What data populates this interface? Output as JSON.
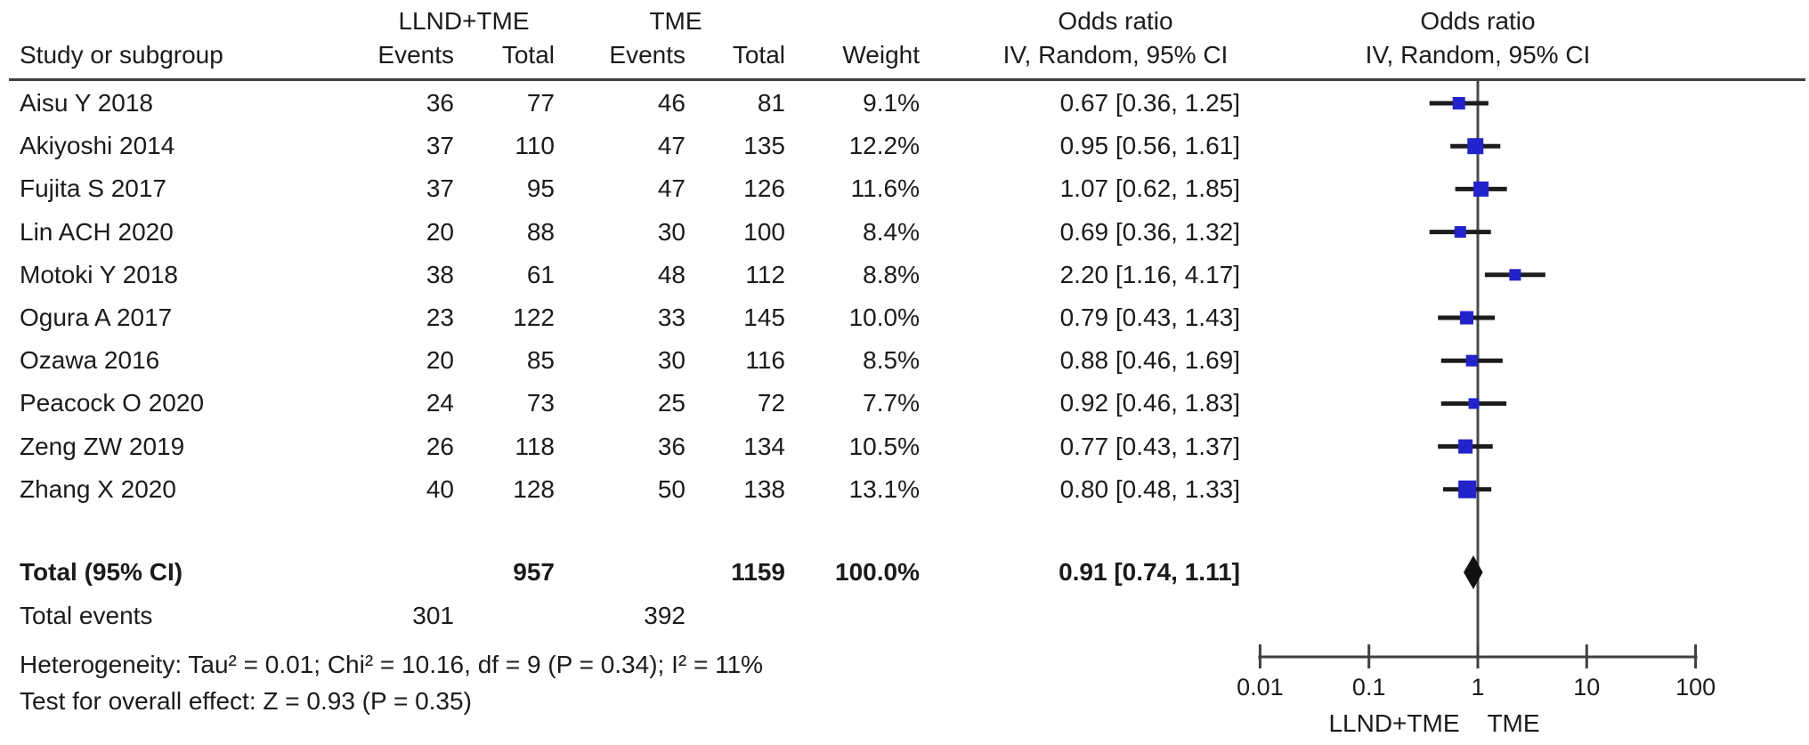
{
  "figure": {
    "header": {
      "study_col": "Study or subgroup",
      "group1_name": "LLND+TME",
      "group2_name": "TME",
      "events_label": "Events",
      "total_label": "Total",
      "weight_label": "Weight",
      "or_col_line1": "Odds ratio",
      "or_col_line2": "IV, Random, 95% CI",
      "plot_col_line1": "Odds ratio",
      "plot_col_line2": "IV, Random, 95% CI"
    },
    "rows": [
      {
        "study": "Aisu Y 2018",
        "events1": "36",
        "total1": "77",
        "events2": "46",
        "total2": "81",
        "weight": "9.1%",
        "or_text": "0.67 [0.36, 1.25]"
      },
      {
        "study": "Akiyoshi 2014",
        "events1": "37",
        "total1": "110",
        "events2": "47",
        "total2": "135",
        "weight": "12.2%",
        "or_text": "0.95 [0.56, 1.61]"
      },
      {
        "study": "Fujita S 2017",
        "events1": "37",
        "total1": "95",
        "events2": "47",
        "total2": "126",
        "weight": "11.6%",
        "or_text": "1.07 [0.62, 1.85]"
      },
      {
        "study": "Lin ACH 2020",
        "events1": "20",
        "total1": "88",
        "events2": "30",
        "total2": "100",
        "weight": "8.4%",
        "or_text": "0.69 [0.36, 1.32]"
      },
      {
        "study": "Motoki Y 2018",
        "events1": "38",
        "total1": "61",
        "events2": "48",
        "total2": "112",
        "weight": "8.8%",
        "or_text": "2.20 [1.16, 4.17]"
      },
      {
        "study": "Ogura A 2017",
        "events1": "23",
        "total1": "122",
        "events2": "33",
        "total2": "145",
        "weight": "10.0%",
        "or_text": "0.79 [0.43, 1.43]"
      },
      {
        "study": "Ozawa 2016",
        "events1": "20",
        "total1": "85",
        "events2": "30",
        "total2": "116",
        "weight": "8.5%",
        "or_text": "0.88 [0.46, 1.69]"
      },
      {
        "study": "Peacock O 2020",
        "events1": "24",
        "total1": "73",
        "events2": "25",
        "total2": "72",
        "weight": "7.7%",
        "or_text": "0.92 [0.46, 1.83]"
      },
      {
        "study": "Zeng ZW 2019",
        "events1": "26",
        "total1": "118",
        "events2": "36",
        "total2": "134",
        "weight": "10.5%",
        "or_text": "0.77 [0.43, 1.37]"
      },
      {
        "study": "Zhang X 2020",
        "events1": "40",
        "total1": "128",
        "events2": "50",
        "total2": "138",
        "weight": "13.1%",
        "or_text": "0.80 [0.48, 1.33]"
      }
    ],
    "total_row": {
      "label": "Total (95% CI)",
      "total1": "957",
      "total2": "1159",
      "weight": "100.0%",
      "or_text": "0.91 [0.74, 1.11]"
    },
    "total_events": {
      "label": "Total events",
      "events1": "301",
      "events2": "392"
    },
    "heterogeneity": "Heterogeneity: Tau² = 0.01; Chi² = 10.16, df = 9 (P = 0.34); I² = 11%",
    "overall_effect": "Test for overall effect: Z = 0.93 (P = 0.35)"
  },
  "axis": {
    "tick_labels": [
      "0.01",
      "0.1",
      "1",
      "10",
      "100"
    ],
    "favours_left": "LLND+TME",
    "favours_right": "TME"
  },
  "colors": {
    "marker_blue": "#2323cd",
    "diamond_black": "#111111",
    "ci_line": "#1c1c1c",
    "axis_gray": "#3f3f3f",
    "no_effect_line_gray": "#4a4a4a"
  },
  "chart_data": {
    "type": "scatter",
    "subtype": "forest_plot_meta_analysis",
    "effect_measure": "Odds ratio, IV, Random, 95% CI",
    "x_scale": "log10",
    "xlim": [
      0.01,
      100
    ],
    "x_ticks": [
      0.01,
      0.1,
      1,
      10,
      100
    ],
    "comparison": {
      "left": "LLND+TME",
      "right": "TME"
    },
    "studies": [
      {
        "name": "Aisu Y 2018",
        "llnd_tme_events": 36,
        "llnd_tme_total": 77,
        "tme_events": 46,
        "tme_total": 81,
        "weight_pct": 9.1,
        "or": 0.67,
        "ci_low": 0.36,
        "ci_high": 1.25
      },
      {
        "name": "Akiyoshi 2014",
        "llnd_tme_events": 37,
        "llnd_tme_total": 110,
        "tme_events": 47,
        "tme_total": 135,
        "weight_pct": 12.2,
        "or": 0.95,
        "ci_low": 0.56,
        "ci_high": 1.61
      },
      {
        "name": "Fujita S 2017",
        "llnd_tme_events": 37,
        "llnd_tme_total": 95,
        "tme_events": 47,
        "tme_total": 126,
        "weight_pct": 11.6,
        "or": 1.07,
        "ci_low": 0.62,
        "ci_high": 1.85
      },
      {
        "name": "Lin ACH 2020",
        "llnd_tme_events": 20,
        "llnd_tme_total": 88,
        "tme_events": 30,
        "tme_total": 100,
        "weight_pct": 8.4,
        "or": 0.69,
        "ci_low": 0.36,
        "ci_high": 1.32
      },
      {
        "name": "Motoki Y 2018",
        "llnd_tme_events": 38,
        "llnd_tme_total": 61,
        "tme_events": 48,
        "tme_total": 112,
        "weight_pct": 8.8,
        "or": 2.2,
        "ci_low": 1.16,
        "ci_high": 4.17
      },
      {
        "name": "Ogura A 2017",
        "llnd_tme_events": 23,
        "llnd_tme_total": 122,
        "tme_events": 33,
        "tme_total": 145,
        "weight_pct": 10.0,
        "or": 0.79,
        "ci_low": 0.43,
        "ci_high": 1.43
      },
      {
        "name": "Ozawa 2016",
        "llnd_tme_events": 20,
        "llnd_tme_total": 85,
        "tme_events": 30,
        "tme_total": 116,
        "weight_pct": 8.5,
        "or": 0.88,
        "ci_low": 0.46,
        "ci_high": 1.69
      },
      {
        "name": "Peacock O 2020",
        "llnd_tme_events": 24,
        "llnd_tme_total": 73,
        "tme_events": 25,
        "tme_total": 72,
        "weight_pct": 7.7,
        "or": 0.92,
        "ci_low": 0.46,
        "ci_high": 1.83
      },
      {
        "name": "Zeng ZW 2019",
        "llnd_tme_events": 26,
        "llnd_tme_total": 118,
        "tme_events": 36,
        "tme_total": 134,
        "weight_pct": 10.5,
        "or": 0.77,
        "ci_low": 0.43,
        "ci_high": 1.37
      },
      {
        "name": "Zhang X 2020",
        "llnd_tme_events": 40,
        "llnd_tme_total": 128,
        "tme_events": 50,
        "tme_total": 138,
        "weight_pct": 13.1,
        "or": 0.8,
        "ci_low": 0.48,
        "ci_high": 1.33
      }
    ],
    "total": {
      "llnd_tme_total": 957,
      "tme_total": 1159,
      "llnd_tme_events": 301,
      "tme_events": 392,
      "weight_pct": 100.0,
      "or": 0.91,
      "ci_low": 0.74,
      "ci_high": 1.11
    },
    "heterogeneity": {
      "tau2": 0.01,
      "chi2": 10.16,
      "df": 9,
      "p": 0.34,
      "i2_pct": 11
    },
    "overall_effect": {
      "z": 0.93,
      "p": 0.35
    }
  }
}
